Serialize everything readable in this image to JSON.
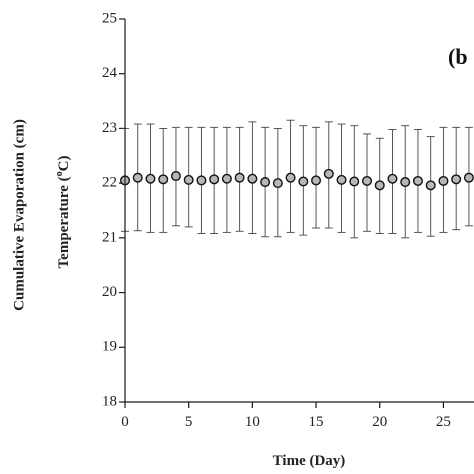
{
  "chart_data": {
    "type": "scatter",
    "title": "",
    "panel_label": "(b",
    "xlabel": "Time (Day)",
    "ylabel": "Temperature (",
    "ylabel_superscript": "o",
    "ylabel_suffix": "C)",
    "ylabel_outer": "Cumulative Evaporation (cm)",
    "xlim": [
      0,
      27.4
    ],
    "ylim": [
      18,
      25
    ],
    "x_ticks": [
      0,
      5,
      10,
      15,
      20,
      25
    ],
    "y_ticks": [
      18,
      19,
      20,
      21,
      22,
      23,
      24,
      25
    ],
    "error_cap": 2,
    "grid": false,
    "series": [
      {
        "x": [
          0,
          1,
          2,
          3,
          4,
          5,
          6,
          7,
          8,
          9,
          10,
          11,
          12,
          13,
          14,
          15,
          16,
          17,
          18,
          19,
          20,
          21,
          22,
          23,
          24,
          25,
          26,
          27
        ],
        "y": [
          22.05,
          22.1,
          22.08,
          22.07,
          22.13,
          22.06,
          22.05,
          22.07,
          22.08,
          22.1,
          22.08,
          22.02,
          22.0,
          22.1,
          22.03,
          22.05,
          22.17,
          22.06,
          22.03,
          22.04,
          21.96,
          22.08,
          22.02,
          22.04,
          21.96,
          22.04,
          22.07,
          22.1
        ],
        "err_upper": [
          23.0,
          23.08,
          23.08,
          23.0,
          23.02,
          23.02,
          23.02,
          23.02,
          23.02,
          23.02,
          23.12,
          23.02,
          23.0,
          23.15,
          23.05,
          23.02,
          23.12,
          23.08,
          23.05,
          22.9,
          22.82,
          22.98,
          23.05,
          22.98,
          22.85,
          23.02,
          23.02,
          23.02
        ],
        "err_lower": [
          21.12,
          21.13,
          21.1,
          21.1,
          21.22,
          21.2,
          21.08,
          21.08,
          21.1,
          21.12,
          21.08,
          21.02,
          21.02,
          21.1,
          21.05,
          21.18,
          21.18,
          21.1,
          21.0,
          21.12,
          21.08,
          21.08,
          21.0,
          21.1,
          21.03,
          21.1,
          21.15,
          21.22
        ]
      }
    ]
  }
}
